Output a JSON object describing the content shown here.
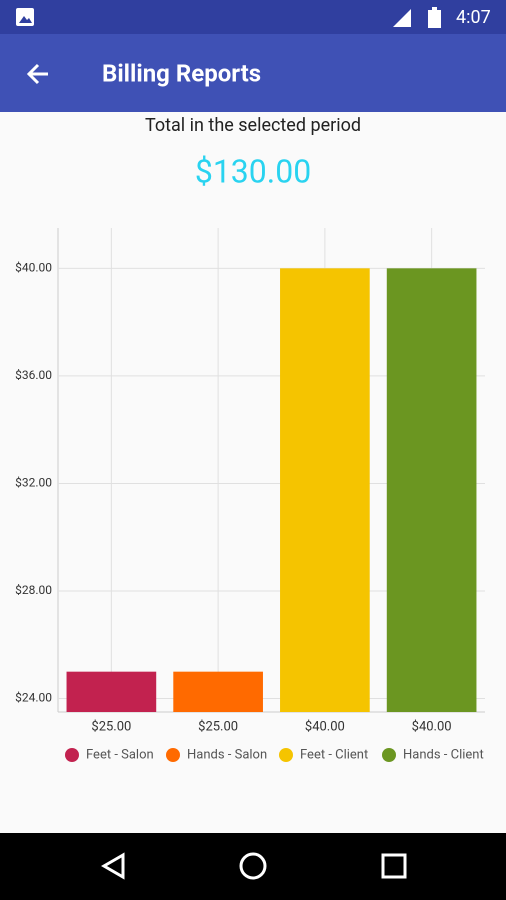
{
  "status_bar": {
    "time": "4:07"
  },
  "app_bar": {
    "title": "Billing Reports"
  },
  "summary": {
    "label": "Total in the selected period",
    "total": "$130.00"
  },
  "chart_data": {
    "type": "bar",
    "series": [
      {
        "name": "Feet - Salon",
        "color": "#c2224f",
        "values": [
          25
        ],
        "value_labels": [
          "$25.00"
        ]
      },
      {
        "name": "Hands - Salon",
        "color": "#ff6a00",
        "values": [
          25
        ],
        "value_labels": [
          "$25.00"
        ]
      },
      {
        "name": "Feet - Client",
        "color": "#f5c400",
        "values": [
          40
        ],
        "value_labels": [
          "$40.00"
        ]
      },
      {
        "name": "Hands - Client",
        "color": "#6b9621",
        "values": [
          40
        ],
        "value_labels": [
          "$40.00"
        ]
      }
    ],
    "ylim": [
      23.5,
      41.5
    ],
    "yticks": [
      {
        "value": 24,
        "label": "$24.00"
      },
      {
        "value": 28,
        "label": "$28.00"
      },
      {
        "value": 32,
        "label": "$32.00"
      },
      {
        "value": 36,
        "label": "$36.00"
      },
      {
        "value": 40,
        "label": "$40.00"
      }
    ],
    "grid": true
  }
}
